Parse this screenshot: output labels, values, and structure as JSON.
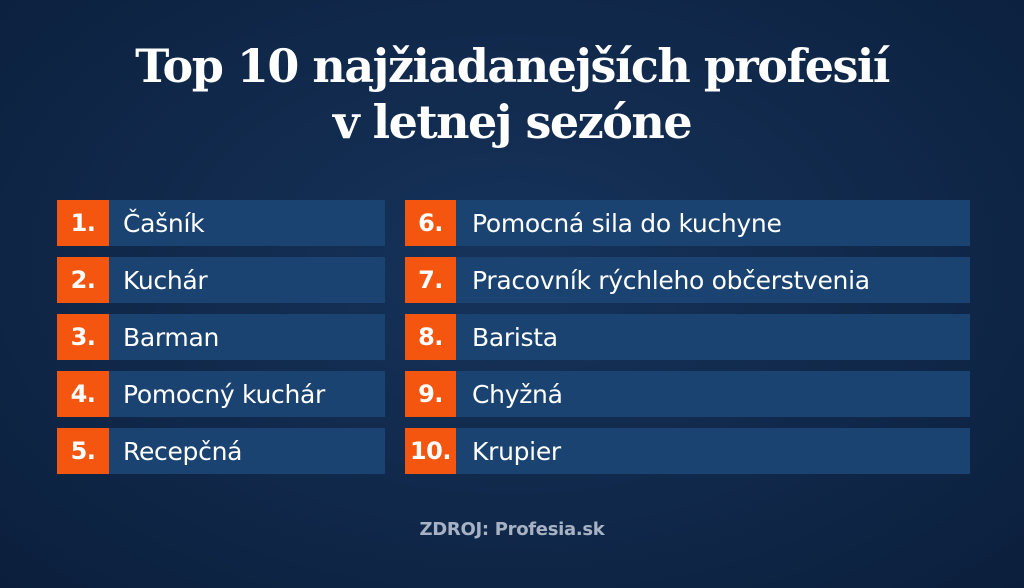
{
  "title": {
    "line1": "Top 10 najžiadanejších profesií",
    "line2": "v letnej sezóne"
  },
  "left_column": [
    {
      "rank": "1.",
      "label": "Čašník"
    },
    {
      "rank": "2.",
      "label": "Kuchár"
    },
    {
      "rank": "3.",
      "label": "Barman"
    },
    {
      "rank": "4.",
      "label": "Pomocný kuchár"
    },
    {
      "rank": "5.",
      "label": "Recepčná"
    }
  ],
  "right_column": [
    {
      "rank": "6.",
      "label": "Pomocná sila do kuchyne"
    },
    {
      "rank": "7.",
      "label": "Pracovník rýchleho občerstvenia"
    },
    {
      "rank": "8.",
      "label": "Barista"
    },
    {
      "rank": "9.",
      "label": "Chyžná"
    },
    {
      "rank": "10.",
      "label": "Krupier"
    }
  ],
  "source": "ZDROJ: Profesia.sk",
  "colors": {
    "background": "#112a4d",
    "row_background": "#1a4371",
    "rank_accent": "#f4560f",
    "text": "#ffffff",
    "source_text": "#a7b3c4"
  }
}
